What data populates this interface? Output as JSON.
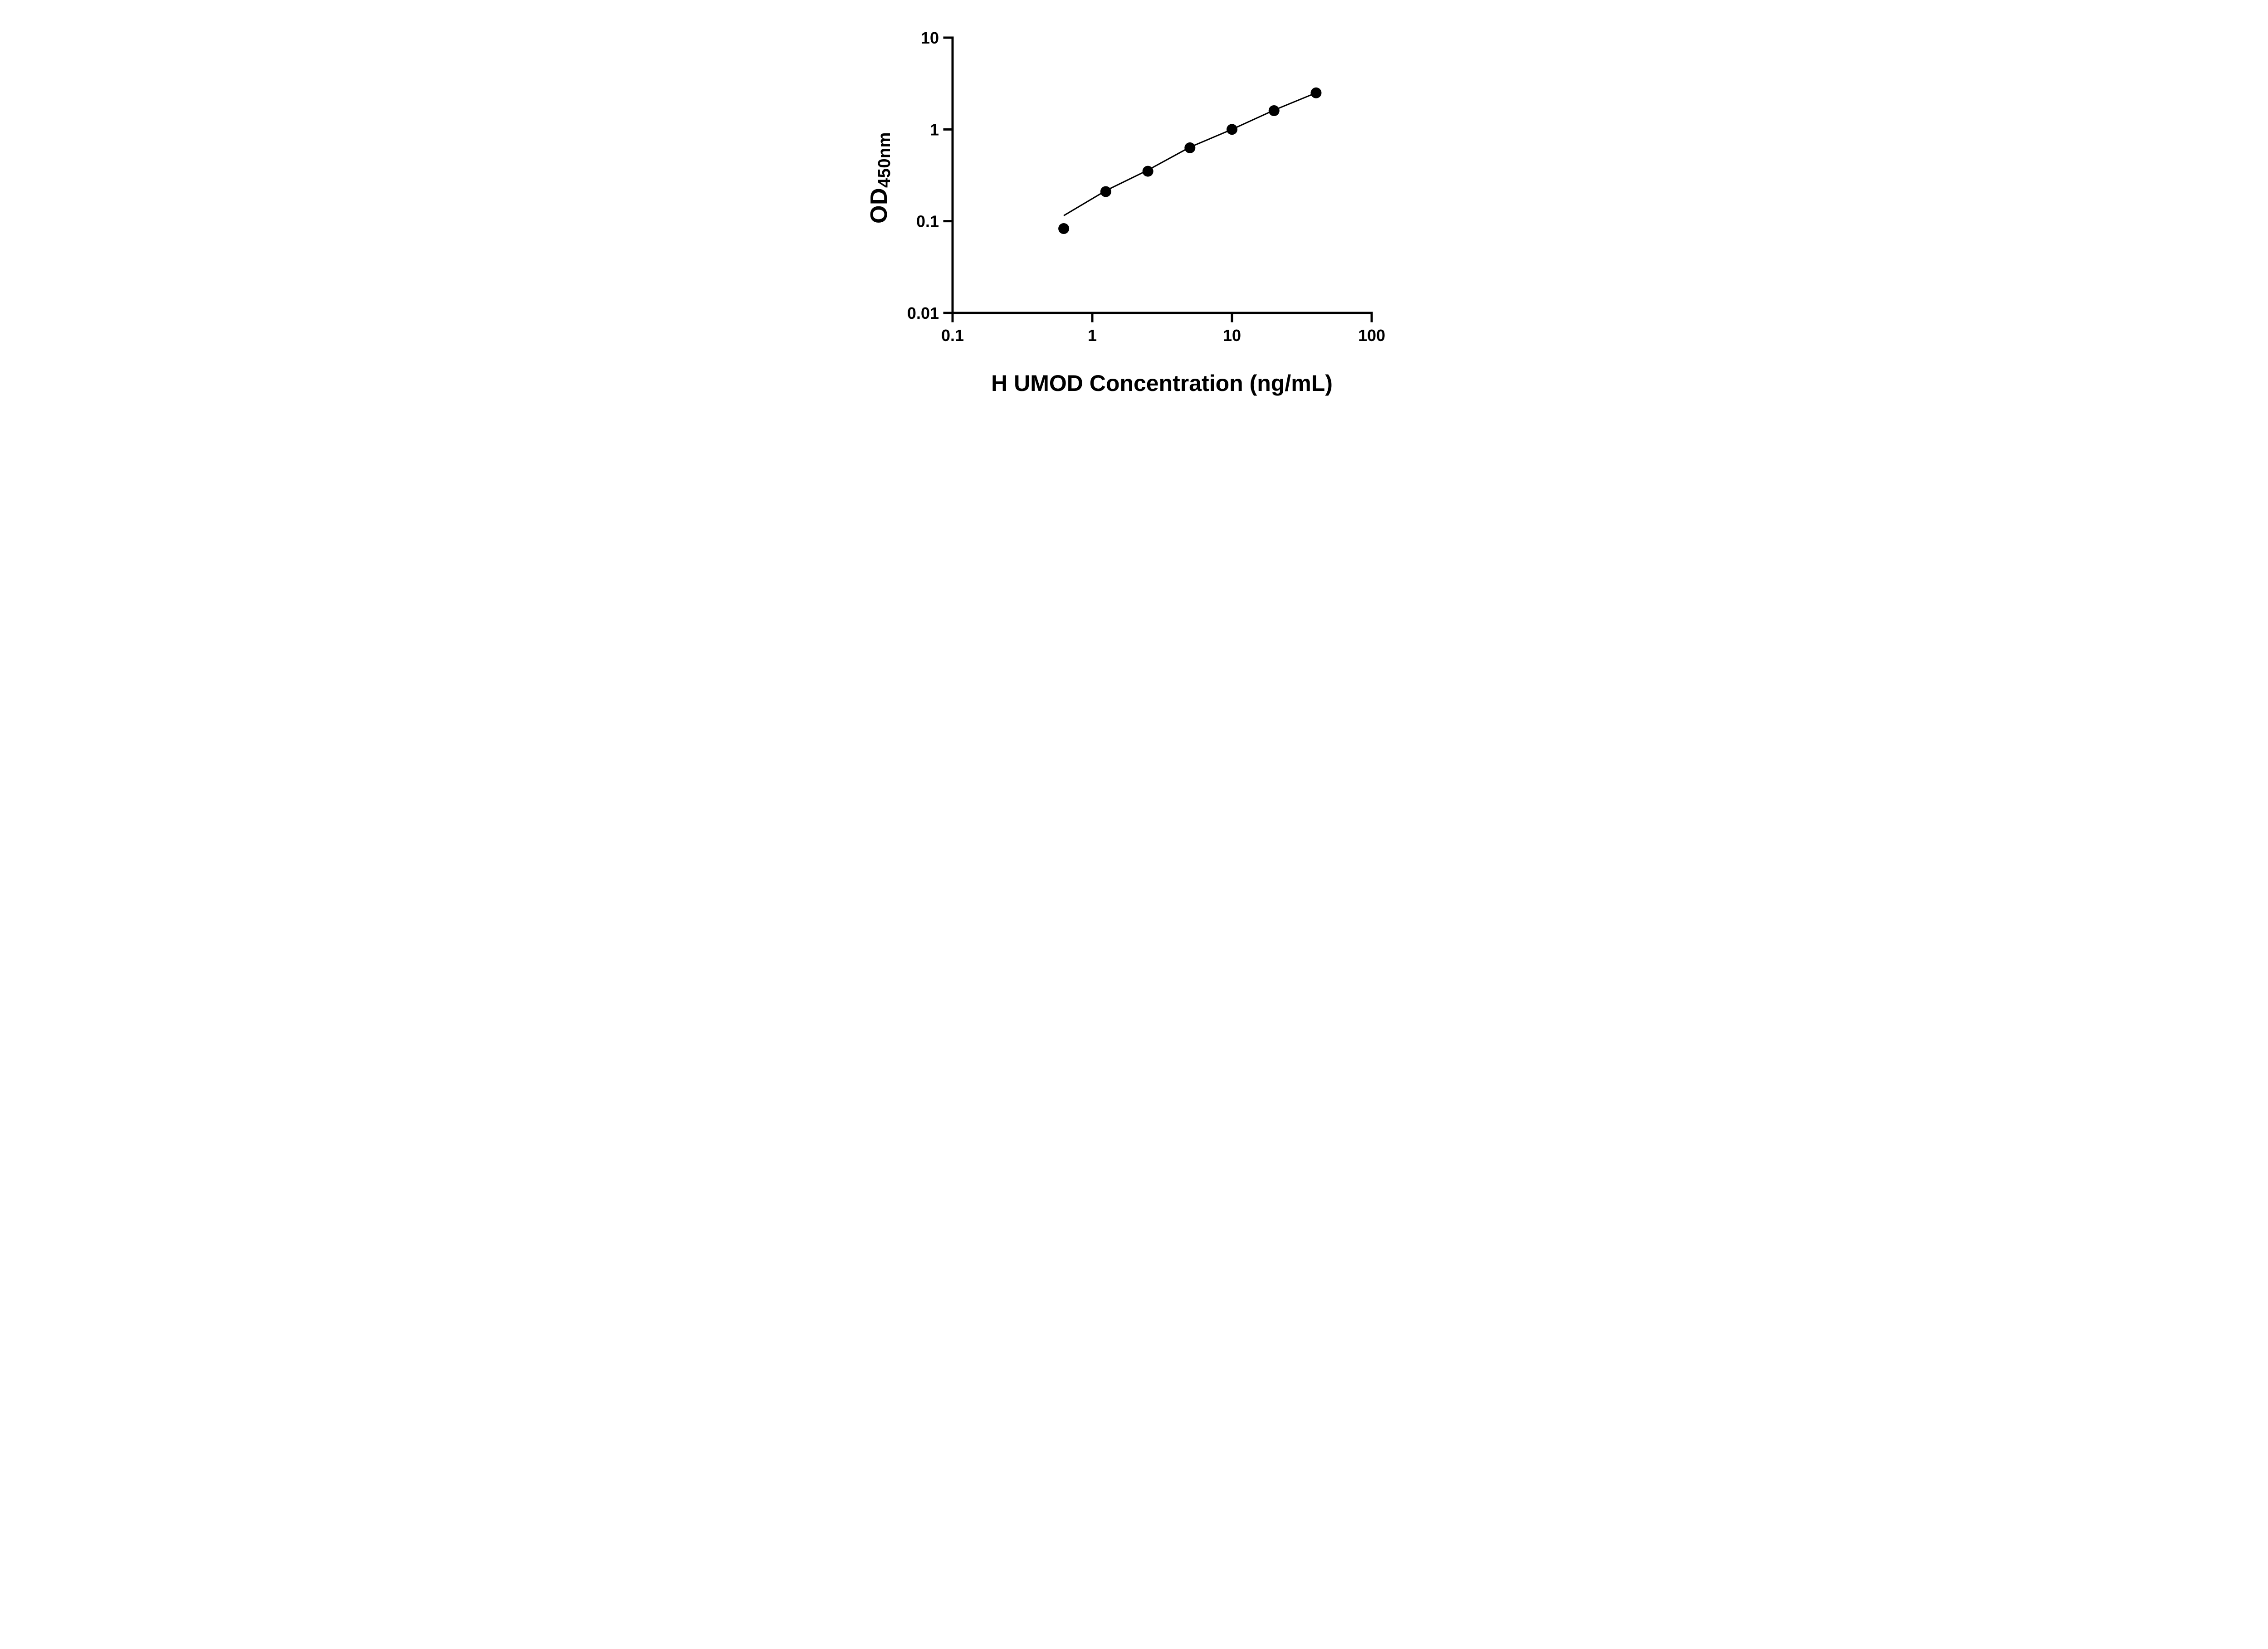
{
  "page": {
    "background": "#ffffff",
    "foreground": "#000000"
  },
  "chart_data": {
    "type": "scatter",
    "title": "",
    "xlabel": "H UMOD Concentration (ng/mL)",
    "ylabel": "OD450nm",
    "ylabel_parts": {
      "main": "OD",
      "sub": "450nm"
    },
    "x_scale": "log10",
    "y_scale": "log10",
    "xlim": [
      0.1,
      100
    ],
    "ylim": [
      0.01,
      10
    ],
    "x_ticks": [
      0.1,
      1,
      10,
      100
    ],
    "x_tick_labels": [
      "0.1",
      "1",
      "10",
      "100"
    ],
    "y_ticks": [
      0.01,
      0.1,
      1,
      10
    ],
    "y_tick_labels": [
      "0.01",
      "0.1",
      "1",
      "10"
    ],
    "grid": false,
    "legend": false,
    "marker_color": "#000000",
    "line_color": "#000000",
    "series": [
      {
        "name": "standard-curve-points",
        "marker": "circle",
        "color": "#000000",
        "points": [
          {
            "x": 0.625,
            "y": 0.083
          },
          {
            "x": 1.25,
            "y": 0.21
          },
          {
            "x": 2.5,
            "y": 0.35
          },
          {
            "x": 5,
            "y": 0.63
          },
          {
            "x": 10,
            "y": 1.0
          },
          {
            "x": 20,
            "y": 1.6
          },
          {
            "x": 40,
            "y": 2.5
          }
        ]
      }
    ],
    "fit_line": {
      "color": "#000000",
      "points": [
        {
          "x": 0.625,
          "y": 0.115
        },
        {
          "x": 1.25,
          "y": 0.215
        },
        {
          "x": 2.5,
          "y": 0.36
        },
        {
          "x": 5,
          "y": 0.64
        },
        {
          "x": 10,
          "y": 1.0
        },
        {
          "x": 20,
          "y": 1.62
        },
        {
          "x": 40,
          "y": 2.5
        }
      ]
    }
  }
}
